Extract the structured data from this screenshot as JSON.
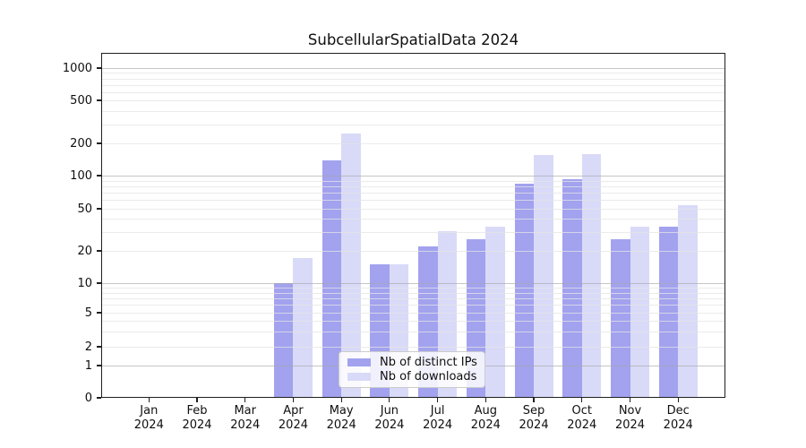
{
  "chart": {
    "title": "SubcellularSpatialData 2024",
    "legend": {
      "items": [
        {
          "label": "Nb of distinct IPs"
        },
        {
          "label": "Nb of downloads"
        }
      ]
    }
  },
  "chart_data": {
    "type": "bar",
    "title": "SubcellularSpatialData 2024",
    "categories": [
      "Jan 2024",
      "Feb 2024",
      "Mar 2024",
      "Apr 2024",
      "May 2024",
      "Jun 2024",
      "Jul 2024",
      "Aug 2024",
      "Sep 2024",
      "Oct 2024",
      "Nov 2024",
      "Dec 2024"
    ],
    "series": [
      {
        "name": "Nb of distinct IPs",
        "color": "#a2a2ef",
        "values": [
          0,
          0,
          0,
          10,
          140,
          15,
          22,
          26,
          85,
          92,
          26,
          34
        ]
      },
      {
        "name": "Nb of downloads",
        "color": "#d9daf8",
        "values": [
          0,
          0,
          0,
          17,
          245,
          15,
          31,
          34,
          155,
          160,
          34,
          54
        ]
      }
    ],
    "yscale": "symlog",
    "yticks": [
      0,
      1,
      2,
      5,
      10,
      20,
      50,
      100,
      200,
      500,
      1000
    ],
    "ylim": [
      0,
      1400
    ],
    "grid": true,
    "legend_position": "lower center",
    "xlabel": "",
    "ylabel": ""
  }
}
